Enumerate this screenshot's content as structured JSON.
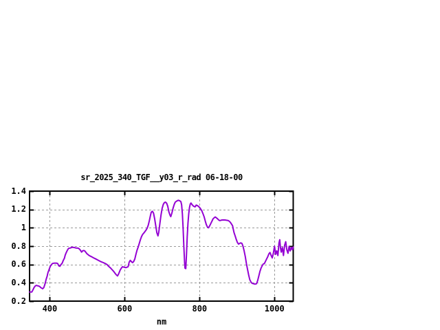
{
  "chart_data": {
    "type": "line",
    "title": "sr_2025_340_TGF__y03_r_rad 06-18-00",
    "xlabel": "nm",
    "xlim": [
      346,
      1050
    ],
    "ylim": [
      0.2,
      1.4
    ],
    "xticks": [
      400,
      600,
      800,
      1000
    ],
    "xtick_labels": [
      "400",
      "600",
      "800",
      "1000"
    ],
    "yticks": [
      0.2,
      0.4,
      0.6,
      0.8,
      1.0,
      1.2,
      1.4
    ],
    "ytick_labels": [
      "0.2",
      "0.4",
      "0.6",
      "0.8",
      "1",
      "1.2",
      "1.4"
    ],
    "grid": true,
    "legend": "none",
    "line_color": "#9400D3",
    "grid_color": "#999999",
    "border_color": "#000000",
    "background_color": "#ffffff",
    "series": [
      {
        "points": [
          [
            346,
            0.3
          ],
          [
            352,
            0.3
          ],
          [
            355,
            0.322
          ],
          [
            358,
            0.348
          ],
          [
            361,
            0.365
          ],
          [
            364,
            0.372
          ],
          [
            367,
            0.368
          ],
          [
            370,
            0.365
          ],
          [
            373,
            0.36
          ],
          [
            376,
            0.348
          ],
          [
            379,
            0.34
          ],
          [
            381,
            0.335
          ],
          [
            384,
            0.348
          ],
          [
            386,
            0.372
          ],
          [
            388,
            0.398
          ],
          [
            390,
            0.435
          ],
          [
            393,
            0.472
          ],
          [
            395,
            0.51
          ],
          [
            398,
            0.542
          ],
          [
            400,
            0.565
          ],
          [
            402,
            0.585
          ],
          [
            405,
            0.6
          ],
          [
            407,
            0.61
          ],
          [
            412,
            0.615
          ],
          [
            418,
            0.615
          ],
          [
            421,
            0.61
          ],
          [
            424,
            0.585
          ],
          [
            427,
            0.58
          ],
          [
            430,
            0.6
          ],
          [
            433,
            0.613
          ],
          [
            436,
            0.643
          ],
          [
            439,
            0.668
          ],
          [
            441,
            0.7
          ],
          [
            444,
            0.73
          ],
          [
            447,
            0.755
          ],
          [
            450,
            0.775
          ],
          [
            455,
            0.78
          ],
          [
            460,
            0.788
          ],
          [
            465,
            0.785
          ],
          [
            470,
            0.78
          ],
          [
            475,
            0.778
          ],
          [
            478,
            0.772
          ],
          [
            481,
            0.76
          ],
          [
            485,
            0.735
          ],
          [
            488,
            0.75
          ],
          [
            491,
            0.752
          ],
          [
            494,
            0.745
          ],
          [
            499,
            0.718
          ],
          [
            505,
            0.698
          ],
          [
            511,
            0.685
          ],
          [
            517,
            0.672
          ],
          [
            523,
            0.66
          ],
          [
            530,
            0.645
          ],
          [
            537,
            0.63
          ],
          [
            543,
            0.62
          ],
          [
            548,
            0.61
          ],
          [
            553,
            0.598
          ],
          [
            557,
            0.58
          ],
          [
            562,
            0.562
          ],
          [
            566,
            0.545
          ],
          [
            571,
            0.522
          ],
          [
            575,
            0.5
          ],
          [
            578,
            0.485
          ],
          [
            581,
            0.475
          ],
          [
            584,
            0.498
          ],
          [
            588,
            0.538
          ],
          [
            591,
            0.56
          ],
          [
            594,
            0.575
          ],
          [
            597,
            0.572
          ],
          [
            600,
            0.568
          ],
          [
            603,
            0.565
          ],
          [
            606,
            0.57
          ],
          [
            609,
            0.575
          ],
          [
            612,
            0.625
          ],
          [
            615,
            0.645
          ],
          [
            618,
            0.63
          ],
          [
            621,
            0.62
          ],
          [
            624,
            0.632
          ],
          [
            627,
            0.66
          ],
          [
            630,
            0.71
          ],
          [
            633,
            0.755
          ],
          [
            636,
            0.79
          ],
          [
            639,
            0.83
          ],
          [
            642,
            0.87
          ],
          [
            645,
            0.905
          ],
          [
            648,
            0.928
          ],
          [
            651,
            0.942
          ],
          [
            654,
            0.958
          ],
          [
            657,
            0.975
          ],
          [
            660,
            0.995
          ],
          [
            663,
            1.03
          ],
          [
            666,
            1.08
          ],
          [
            669,
            1.14
          ],
          [
            671,
            1.17
          ],
          [
            674,
            1.18
          ],
          [
            677,
            1.16
          ],
          [
            680,
            1.1
          ],
          [
            683,
            1.02
          ],
          [
            686,
            0.945
          ],
          [
            689,
            0.912
          ],
          [
            691,
            0.95
          ],
          [
            694,
            1.05
          ],
          [
            697,
            1.14
          ],
          [
            700,
            1.21
          ],
          [
            703,
            1.255
          ],
          [
            706,
            1.275
          ],
          [
            709,
            1.28
          ],
          [
            712,
            1.268
          ],
          [
            715,
            1.235
          ],
          [
            718,
            1.175
          ],
          [
            721,
            1.138
          ],
          [
            723,
            1.122
          ],
          [
            726,
            1.16
          ],
          [
            729,
            1.21
          ],
          [
            732,
            1.252
          ],
          [
            735,
            1.28
          ],
          [
            739,
            1.292
          ],
          [
            743,
            1.3
          ],
          [
            747,
            1.295
          ],
          [
            750,
            1.285
          ],
          [
            752,
            1.25
          ],
          [
            754,
            1.15
          ],
          [
            756,
            1.0
          ],
          [
            758,
            0.8
          ],
          [
            760,
            0.62
          ],
          [
            761,
            0.56
          ],
          [
            763,
            0.555
          ],
          [
            765,
            0.7
          ],
          [
            767,
            0.9
          ],
          [
            769,
            1.05
          ],
          [
            771,
            1.15
          ],
          [
            773,
            1.22
          ],
          [
            775,
            1.258
          ],
          [
            777,
            1.27
          ],
          [
            780,
            1.252
          ],
          [
            784,
            1.235
          ],
          [
            788,
            1.228
          ],
          [
            791,
            1.248
          ],
          [
            795,
            1.24
          ],
          [
            800,
            1.222
          ],
          [
            803,
            1.205
          ],
          [
            806,
            1.185
          ],
          [
            809,
            1.155
          ],
          [
            812,
            1.12
          ],
          [
            815,
            1.075
          ],
          [
            818,
            1.035
          ],
          [
            821,
            1.008
          ],
          [
            824,
            1.0
          ],
          [
            827,
            1.022
          ],
          [
            830,
            1.048
          ],
          [
            833,
            1.072
          ],
          [
            836,
            1.098
          ],
          [
            839,
            1.11
          ],
          [
            842,
            1.118
          ],
          [
            845,
            1.108
          ],
          [
            848,
            1.098
          ],
          [
            851,
            1.085
          ],
          [
            854,
            1.078
          ],
          [
            857,
            1.082
          ],
          [
            860,
            1.085
          ],
          [
            864,
            1.086
          ],
          [
            868,
            1.085
          ],
          [
            872,
            1.082
          ],
          [
            876,
            1.08
          ],
          [
            879,
            1.072
          ],
          [
            882,
            1.06
          ],
          [
            885,
            1.042
          ],
          [
            888,
            1.022
          ],
          [
            890,
            0.985
          ],
          [
            892,
            0.948
          ],
          [
            895,
            0.91
          ],
          [
            898,
            0.872
          ],
          [
            901,
            0.84
          ],
          [
            904,
            0.822
          ],
          [
            907,
            0.83
          ],
          [
            910,
            0.835
          ],
          [
            913,
            0.83
          ],
          [
            916,
            0.798
          ],
          [
            919,
            0.748
          ],
          [
            922,
            0.685
          ],
          [
            925,
            0.61
          ],
          [
            928,
            0.548
          ],
          [
            931,
            0.485
          ],
          [
            934,
            0.435
          ],
          [
            937,
            0.41
          ],
          [
            940,
            0.395
          ],
          [
            944,
            0.39
          ],
          [
            948,
            0.385
          ],
          [
            952,
            0.39
          ],
          [
            955,
            0.422
          ],
          [
            958,
            0.472
          ],
          [
            961,
            0.522
          ],
          [
            964,
            0.56
          ],
          [
            967,
            0.585
          ],
          [
            970,
            0.605
          ],
          [
            973,
            0.61
          ],
          [
            976,
            0.635
          ],
          [
            979,
            0.66
          ],
          [
            982,
            0.685
          ],
          [
            985,
            0.715
          ],
          [
            988,
            0.73
          ],
          [
            991,
            0.698
          ],
          [
            994,
            0.672
          ],
          [
            997,
            0.722
          ],
          [
            1000,
            0.798
          ],
          [
            1003,
            0.71
          ],
          [
            1006,
            0.748
          ],
          [
            1009,
            0.698
          ],
          [
            1012,
            0.835
          ],
          [
            1014,
            0.87
          ],
          [
            1016,
            0.78
          ],
          [
            1018,
            0.735
          ],
          [
            1021,
            0.785
          ],
          [
            1024,
            0.698
          ],
          [
            1027,
            0.81
          ],
          [
            1030,
            0.848
          ],
          [
            1033,
            0.76
          ],
          [
            1036,
            0.722
          ],
          [
            1039,
            0.798
          ],
          [
            1042,
            0.748
          ],
          [
            1045,
            0.785
          ],
          [
            1048,
            0.76
          ],
          [
            1050,
            0.79
          ]
        ]
      }
    ]
  }
}
